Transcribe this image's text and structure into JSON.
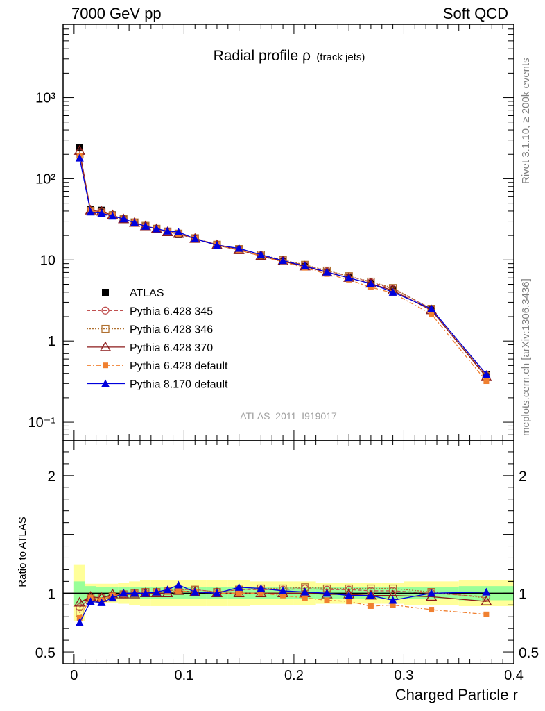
{
  "header": {
    "energy_label": "7000 GeV pp",
    "process_label": "Soft QCD"
  },
  "side_labels": {
    "rivet": "Rivet 3.1.10, ≥ 200k events",
    "mcplots": "mcplots.cern.ch [arXiv:1306.3436]"
  },
  "title": {
    "main": "Radial profile ρ",
    "sub": "(track jets)"
  },
  "analysis_id": "ATLAS_2011_I919017",
  "chart_data": {
    "type": "scatter",
    "x": [
      0.005,
      0.015,
      0.025,
      0.035,
      0.045,
      0.055,
      0.065,
      0.075,
      0.085,
      0.095,
      0.11,
      0.13,
      0.15,
      0.17,
      0.19,
      0.21,
      0.23,
      0.25,
      0.27,
      0.29,
      0.325,
      0.375
    ],
    "x_edges": [
      0.0,
      0.01,
      0.02,
      0.03,
      0.04,
      0.05,
      0.06,
      0.07,
      0.08,
      0.09,
      0.1,
      0.12,
      0.14,
      0.16,
      0.18,
      0.2,
      0.22,
      0.24,
      0.26,
      0.28,
      0.3,
      0.35,
      0.4
    ],
    "xlabel": "Charged Particle r",
    "xlim": [
      -0.01,
      0.4
    ],
    "x_ticks": [
      0,
      0.1,
      0.2,
      0.3,
      0.4
    ],
    "x_tick_labels": [
      "0",
      "0.1",
      "0.2",
      "0.3",
      "0.4"
    ],
    "main_panel": {
      "yscale": "log",
      "ylim": [
        0.06,
        8000
      ],
      "y_tick_labels": [
        "10⁻¹",
        "1",
        "10",
        "10²",
        "10³"
      ],
      "y_tick_values": [
        0.1,
        1,
        10,
        100,
        1000
      ]
    },
    "ratio_panel": {
      "ylabel": "Ratio to ATLAS",
      "ylim": [
        0.4,
        2.3
      ],
      "y_ticks": [
        0.5,
        1,
        2
      ],
      "y_tick_labels": [
        "0.5",
        "1",
        "2"
      ],
      "band_inner": [
        0.1,
        0.06,
        0.05,
        0.05,
        0.05,
        0.05,
        0.05,
        0.05,
        0.05,
        0.05,
        0.05,
        0.05,
        0.05,
        0.05,
        0.05,
        0.05,
        0.05,
        0.05,
        0.05,
        0.05,
        0.05,
        0.06
      ],
      "band_outer": [
        0.24,
        0.08,
        0.08,
        0.08,
        0.09,
        0.1,
        0.11,
        0.11,
        0.11,
        0.11,
        0.11,
        0.11,
        0.11,
        0.1,
        0.1,
        0.1,
        0.09,
        0.09,
        0.09,
        0.09,
        0.1,
        0.11
      ]
    },
    "legend_position": "middle-left",
    "series": [
      {
        "name": "ATLAS",
        "marker": "square",
        "color": "#000000",
        "line": "none",
        "values": [
          240,
          42,
          41,
          36,
          32,
          29,
          26,
          24,
          22,
          20.5,
          18,
          15.2,
          13.2,
          11.2,
          9.6,
          8.3,
          7.1,
          6.1,
          5.2,
          4.3,
          2.5,
          0.39
        ],
        "ratio": [
          1,
          1,
          1,
          1,
          1,
          1,
          1,
          1,
          1,
          1,
          1,
          1,
          1,
          1,
          1,
          1,
          1,
          1,
          1,
          1,
          1,
          1
        ]
      },
      {
        "name": "Pythia 6.428 345",
        "marker": "open-circle",
        "color": "#c05050",
        "line": "dashed",
        "values": [
          211,
          40.3,
          39.4,
          35.3,
          31.7,
          29,
          26.3,
          24.2,
          22.4,
          21.1,
          18.5,
          15.4,
          13.6,
          11.5,
          9.9,
          8.6,
          7.3,
          6.3,
          5.3,
          4.4,
          2.5,
          0.38
        ],
        "ratio": [
          0.88,
          0.96,
          0.96,
          0.98,
          0.99,
          1.0,
          1.01,
          1.01,
          1.02,
          1.03,
          1.03,
          1.01,
          1.03,
          1.03,
          1.03,
          1.04,
          1.03,
          1.03,
          1.02,
          1.02,
          1.0,
          0.97
        ]
      },
      {
        "name": "Pythia 6.428 346",
        "marker": "open-square",
        "color": "#b07030",
        "line": "dotted",
        "values": [
          199,
          40.3,
          39.4,
          35.3,
          31.7,
          29,
          26.3,
          24.2,
          22.4,
          21.1,
          18.5,
          15.4,
          13.6,
          11.6,
          10.0,
          8.7,
          7.4,
          6.3,
          5.4,
          4.5,
          2.5,
          0.37
        ],
        "ratio": [
          0.83,
          0.96,
          0.96,
          0.98,
          0.99,
          1.0,
          1.01,
          1.01,
          1.02,
          1.03,
          1.03,
          1.01,
          1.03,
          1.04,
          1.04,
          1.05,
          1.04,
          1.04,
          1.04,
          1.04,
          1.01,
          0.96
        ]
      },
      {
        "name": "Pythia 6.428 370",
        "marker": "open-triangle",
        "color": "#8b1a1a",
        "line": "solid",
        "values": [
          221,
          40.7,
          39.4,
          35.6,
          31.7,
          28.7,
          26,
          24,
          22,
          20.9,
          18.2,
          15.2,
          13.2,
          11.2,
          9.6,
          8.3,
          7.0,
          6.0,
          5.1,
          4.2,
          2.4,
          0.36
        ],
        "ratio": [
          0.92,
          0.97,
          0.96,
          0.99,
          0.99,
          0.99,
          1.0,
          1.0,
          1.0,
          1.02,
          1.01,
          1.0,
          1.0,
          1.0,
          1.0,
          1.0,
          0.99,
          0.99,
          0.98,
          0.98,
          0.97,
          0.93
        ]
      },
      {
        "name": "Pythia 6.428 default",
        "marker": "filled-square-small",
        "color": "#f08030",
        "line": "dashdot",
        "values": [
          190,
          40.3,
          38.5,
          35.3,
          31.7,
          29,
          26,
          24.2,
          22.2,
          20.9,
          18.2,
          15.2,
          13.2,
          11.2,
          9.4,
          8.0,
          6.7,
          5.7,
          4.6,
          3.9,
          2.15,
          0.32
        ],
        "ratio": [
          0.79,
          0.96,
          0.94,
          0.98,
          0.99,
          1.0,
          1.0,
          1.01,
          1.01,
          1.02,
          1.01,
          1.0,
          1.0,
          1.0,
          0.98,
          0.96,
          0.94,
          0.93,
          0.89,
          0.9,
          0.86,
          0.82
        ]
      },
      {
        "name": "Pythia 8.170 default",
        "marker": "filled-triangle",
        "color": "#0000dd",
        "line": "solid",
        "values": [
          180,
          39,
          37.7,
          34.6,
          32,
          28.7,
          26,
          24.2,
          22.7,
          22.1,
          18.2,
          15.2,
          13.9,
          11.6,
          9.8,
          8.4,
          7.1,
          6.0,
          5.1,
          4.0,
          2.5,
          0.39
        ],
        "ratio": [
          0.75,
          0.93,
          0.92,
          0.96,
          1.0,
          1.0,
          1.0,
          1.01,
          1.03,
          1.07,
          1.01,
          1.0,
          1.05,
          1.04,
          1.02,
          1.01,
          1.0,
          0.98,
          0.98,
          0.94,
          1.0,
          1.01
        ]
      }
    ]
  }
}
